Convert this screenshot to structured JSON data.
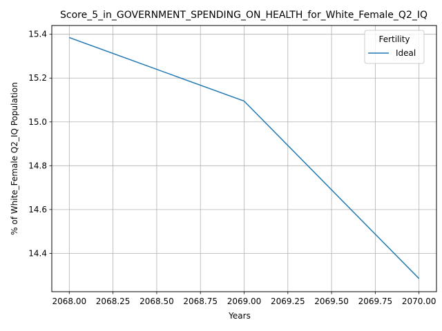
{
  "chart_data": {
    "type": "line",
    "title": "Score_5_in_GOVERNMENT_SPENDING_ON_HEALTH_for_White_Female_Q2_IQ",
    "xlabel": "Years",
    "ylabel": "% of White_Female Q2_IQ Population",
    "xlim": [
      2067.9,
      2070.1
    ],
    "ylim": [
      14.225,
      15.44
    ],
    "x_ticks": [
      "2068.00",
      "2068.25",
      "2068.50",
      "2068.75",
      "2069.00",
      "2069.25",
      "2069.50",
      "2069.75",
      "2070.00"
    ],
    "x_tick_values": [
      2068.0,
      2068.25,
      2068.5,
      2068.75,
      2069.0,
      2069.25,
      2069.5,
      2069.75,
      2070.0
    ],
    "y_ticks": [
      "14.4",
      "14.6",
      "14.8",
      "15.0",
      "15.2",
      "15.4"
    ],
    "y_tick_values": [
      14.4,
      14.6,
      14.8,
      15.0,
      15.2,
      15.4
    ],
    "grid": true,
    "legend": {
      "title": "Fertility",
      "position": "top-right"
    },
    "series": [
      {
        "name": "Ideal",
        "color": "#1f77b4",
        "x": [
          2068,
          2069,
          2070
        ],
        "y": [
          15.385,
          15.095,
          14.285
        ]
      }
    ]
  }
}
